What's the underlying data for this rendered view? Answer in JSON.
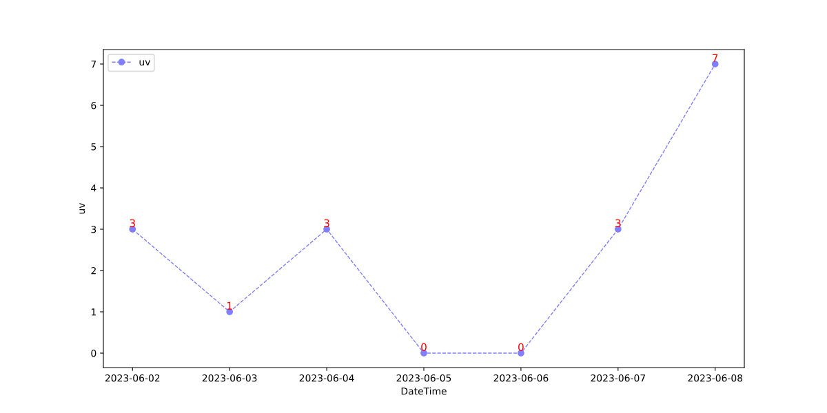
{
  "chart_data": {
    "type": "line",
    "xlabel": "DateTime",
    "ylabel": "uv",
    "categories": [
      "2023-06-02",
      "2023-06-03",
      "2023-06-04",
      "2023-06-05",
      "2023-06-06",
      "2023-06-07",
      "2023-06-08"
    ],
    "series": [
      {
        "name": "uv",
        "color": "#7f7fff",
        "values": [
          3,
          1,
          3,
          0,
          0,
          3,
          7
        ]
      }
    ],
    "ylim": [
      -0.35,
      7.35
    ],
    "yticks": [
      0,
      1,
      2,
      3,
      4,
      5,
      6,
      7
    ],
    "data_labels": true,
    "marker": "circle",
    "line_style": "dashed",
    "legend": "top left",
    "grid": false
  }
}
